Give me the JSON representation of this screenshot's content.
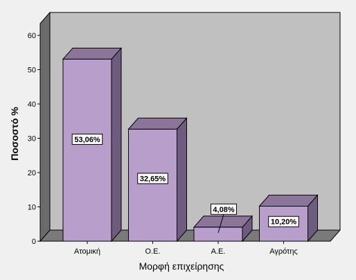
{
  "chart_data": {
    "type": "bar",
    "categories": [
      "Ατομική",
      "Ο.Ε.",
      "Α.Ε.",
      "Αγρότης"
    ],
    "values": [
      53.06,
      32.65,
      4.08,
      10.2
    ],
    "data_labels": [
      "53,06%",
      "32,65%",
      "4,08%",
      "10,20%"
    ],
    "xlabel": "Μορφή επιχείρησης",
    "ylabel": "Ποσοστό %",
    "ylim": [
      0,
      60
    ],
    "yticks": [
      0,
      10,
      20,
      30,
      40,
      50,
      60
    ],
    "grid": false,
    "style": "3d",
    "colors": {
      "bar_front": "#b89ecb",
      "bar_side": "#6e5b7d",
      "bar_top": "#8b7599",
      "back_wall": "#c0c0c0",
      "floor": "#7a7a7a",
      "side_wall": "#6b6b6b",
      "background": "#eff0ef"
    }
  }
}
